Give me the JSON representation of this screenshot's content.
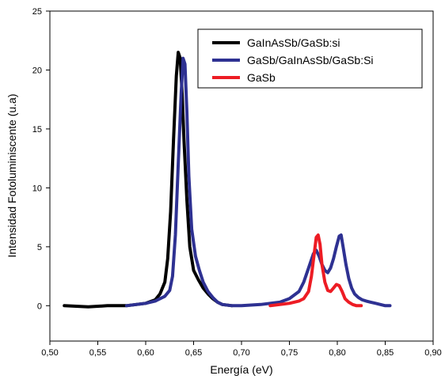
{
  "chart_data": {
    "type": "line",
    "title": "",
    "xlabel": "Energía (eV)",
    "ylabel": "Intensidad Fotoluminiscente (u.a)",
    "xlim": [
      0.5,
      0.9
    ],
    "ylim": [
      -3,
      25
    ],
    "x_ticks": [
      "0,50",
      "0,55",
      "0,60",
      "0,65",
      "0,70",
      "0,75",
      "0,80",
      "0,85",
      "0,90"
    ],
    "x_tick_values": [
      0.5,
      0.55,
      0.6,
      0.65,
      0.7,
      0.75,
      0.8,
      0.85,
      0.9
    ],
    "y_ticks": [
      "0",
      "5",
      "10",
      "15",
      "20",
      "25"
    ],
    "y_tick_values": [
      0,
      5,
      10,
      15,
      20,
      25
    ],
    "grid": false,
    "legend_position": "top-right",
    "series": [
      {
        "name": "GaInAsSb/GaSb:si",
        "color": "#000000",
        "x": [
          0.515,
          0.54,
          0.56,
          0.58,
          0.6,
          0.61,
          0.615,
          0.62,
          0.623,
          0.626,
          0.629,
          0.632,
          0.634,
          0.636,
          0.638,
          0.64,
          0.643,
          0.646,
          0.65,
          0.655,
          0.66,
          0.665,
          0.67,
          0.675,
          0.68,
          0.69
        ],
        "y": [
          0.0,
          -0.1,
          0.0,
          0.0,
          0.2,
          0.5,
          1.0,
          2.0,
          4.0,
          8.0,
          14.0,
          19.5,
          21.5,
          21.0,
          18.0,
          14.0,
          9.0,
          5.0,
          3.0,
          2.2,
          1.5,
          1.0,
          0.6,
          0.3,
          0.1,
          0.0
        ]
      },
      {
        "name": "GaSb/GaInAsSb/GaSb:Si",
        "color": "#2e3192",
        "x": [
          0.58,
          0.6,
          0.61,
          0.62,
          0.625,
          0.628,
          0.631,
          0.634,
          0.637,
          0.639,
          0.641,
          0.643,
          0.645,
          0.648,
          0.652,
          0.656,
          0.66,
          0.665,
          0.67,
          0.675,
          0.68,
          0.69,
          0.7,
          0.72,
          0.74,
          0.75,
          0.76,
          0.765,
          0.77,
          0.775,
          0.778,
          0.781,
          0.784,
          0.787,
          0.79,
          0.793,
          0.796,
          0.799,
          0.802,
          0.804,
          0.806,
          0.809,
          0.812,
          0.815,
          0.818,
          0.822,
          0.826,
          0.83,
          0.835,
          0.84,
          0.845,
          0.85,
          0.855
        ],
        "y": [
          0.0,
          0.2,
          0.4,
          0.8,
          1.3,
          2.5,
          6.0,
          12.0,
          18.0,
          21.0,
          20.5,
          16.5,
          11.0,
          6.5,
          4.2,
          3.0,
          2.0,
          1.2,
          0.7,
          0.3,
          0.1,
          0.0,
          0.0,
          0.1,
          0.3,
          0.6,
          1.2,
          2.0,
          3.2,
          4.4,
          4.7,
          4.2,
          3.5,
          3.0,
          2.8,
          3.2,
          4.0,
          5.0,
          5.9,
          6.0,
          5.0,
          3.5,
          2.3,
          1.5,
          1.0,
          0.7,
          0.5,
          0.4,
          0.3,
          0.2,
          0.1,
          0.0,
          0.0
        ]
      },
      {
        "name": "GaSb",
        "color": "#ed1c24",
        "x": [
          0.73,
          0.74,
          0.75,
          0.76,
          0.765,
          0.77,
          0.773,
          0.776,
          0.778,
          0.78,
          0.782,
          0.784,
          0.787,
          0.79,
          0.793,
          0.796,
          0.799,
          0.802,
          0.805,
          0.808,
          0.812,
          0.816,
          0.82,
          0.825
        ],
        "y": [
          0.0,
          0.1,
          0.2,
          0.4,
          0.6,
          1.2,
          2.5,
          4.5,
          5.8,
          6.0,
          5.2,
          3.5,
          2.0,
          1.3,
          1.2,
          1.5,
          1.8,
          1.7,
          1.2,
          0.6,
          0.3,
          0.1,
          0.0,
          0.0
        ]
      }
    ]
  }
}
